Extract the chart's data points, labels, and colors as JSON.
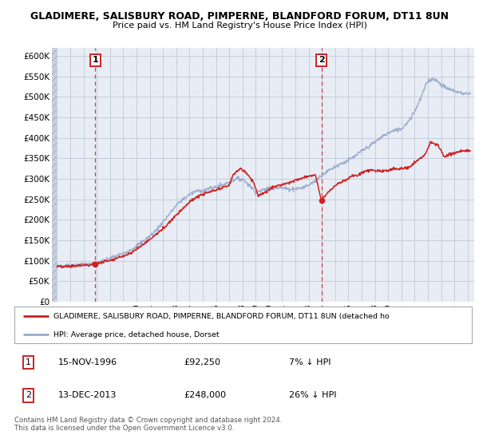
{
  "title_line1": "GLADIMERE, SALISBURY ROAD, PIMPERNE, BLANDFORD FORUM, DT11 8UN",
  "title_line2": "Price paid vs. HM Land Registry's House Price Index (HPI)",
  "ylim": [
    0,
    620000
  ],
  "yticks": [
    0,
    50000,
    100000,
    150000,
    200000,
    250000,
    300000,
    350000,
    400000,
    450000,
    500000,
    550000,
    600000
  ],
  "ytick_labels": [
    "£0",
    "£50K",
    "£100K",
    "£150K",
    "£200K",
    "£250K",
    "£300K",
    "£350K",
    "£400K",
    "£450K",
    "£500K",
    "£550K",
    "£600K"
  ],
  "xlim_start": 1993.6,
  "xlim_end": 2025.5,
  "sale1_x": 1996.88,
  "sale1_y": 92250,
  "sale1_label": "1",
  "sale2_x": 2013.96,
  "sale2_y": 248000,
  "sale2_label": "2",
  "hpi_color": "#99aacc",
  "sold_color": "#cc2222",
  "marker_color": "#cc2222",
  "vline_color": "#cc2222",
  "legend_line1": "GLADIMERE, SALISBURY ROAD, PIMPERNE, BLANDFORD FORUM, DT11 8UN (detached ho",
  "legend_line2": "HPI: Average price, detached house, Dorset",
  "table_row1_num": "1",
  "table_row1_date": "15-NOV-1996",
  "table_row1_price": "£92,250",
  "table_row1_hpi": "7% ↓ HPI",
  "table_row2_num": "2",
  "table_row2_date": "13-DEC-2013",
  "table_row2_price": "£248,000",
  "table_row2_hpi": "26% ↓ HPI",
  "footer": "Contains HM Land Registry data © Crown copyright and database right 2024.\nThis data is licensed under the Open Government Licence v3.0."
}
